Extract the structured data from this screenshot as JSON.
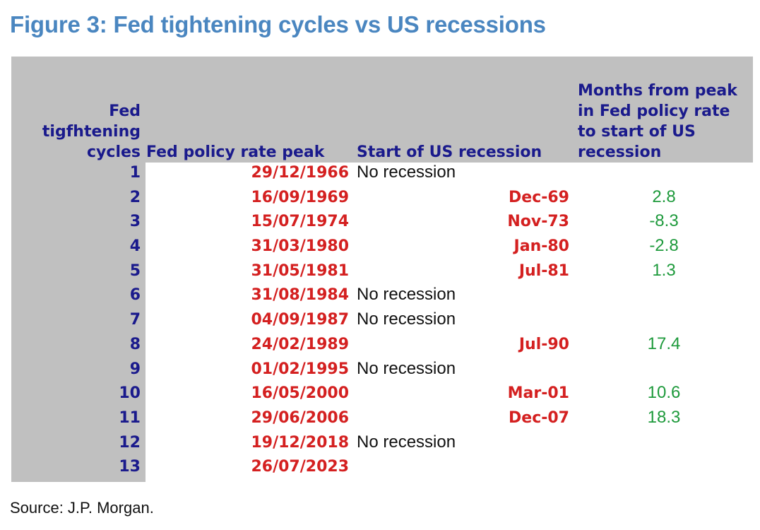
{
  "title": "Figure 3: Fed tightening cycles vs US recessions",
  "headers": {
    "cycles": [
      "Fed",
      "tigfhtening",
      "cycles"
    ],
    "peak": "Fed policy rate peak",
    "start": "Start of US recession",
    "months": [
      "Months from peak",
      "in Fed policy rate",
      "to start of US",
      "recession"
    ]
  },
  "rows": [
    {
      "cycle": "1",
      "peak": "29/12/1966",
      "no_recession": "No recession",
      "start": "",
      "months": ""
    },
    {
      "cycle": "2",
      "peak": "16/09/1969",
      "no_recession": "",
      "start": "Dec-69",
      "months": "2.8"
    },
    {
      "cycle": "3",
      "peak": "15/07/1974",
      "no_recession": "",
      "start": "Nov-73",
      "months": "-8.3"
    },
    {
      "cycle": "4",
      "peak": "31/03/1980",
      "no_recession": "",
      "start": "Jan-80",
      "months": "-2.8"
    },
    {
      "cycle": "5",
      "peak": "31/05/1981",
      "no_recession": "",
      "start": "Jul-81",
      "months": "1.3"
    },
    {
      "cycle": "6",
      "peak": "31/08/1984",
      "no_recession": "No recession",
      "start": "",
      "months": ""
    },
    {
      "cycle": "7",
      "peak": "04/09/1987",
      "no_recession": "No recession",
      "start": "",
      "months": ""
    },
    {
      "cycle": "8",
      "peak": "24/02/1989",
      "no_recession": "",
      "start": "Jul-90",
      "months": "17.4"
    },
    {
      "cycle": "9",
      "peak": "01/02/1995",
      "no_recession": "No recession",
      "start": "",
      "months": ""
    },
    {
      "cycle": "10",
      "peak": "16/05/2000",
      "no_recession": "",
      "start": "Mar-01",
      "months": "10.6"
    },
    {
      "cycle": "11",
      "peak": "29/06/2006",
      "no_recession": "",
      "start": "Dec-07",
      "months": "18.3"
    },
    {
      "cycle": "12",
      "peak": "19/12/2018",
      "no_recession": "No recession",
      "start": "",
      "months": ""
    },
    {
      "cycle": "13",
      "peak": "26/07/2023",
      "no_recession": "",
      "start": "",
      "months": ""
    }
  ],
  "source": "Source: J.P. Morgan.",
  "colors": {
    "title": "#4a86c0",
    "header_text": "#1a1a8c",
    "band": "#c0c0c0",
    "date_red": "#d42020",
    "months_green": "#1e9a3c"
  }
}
